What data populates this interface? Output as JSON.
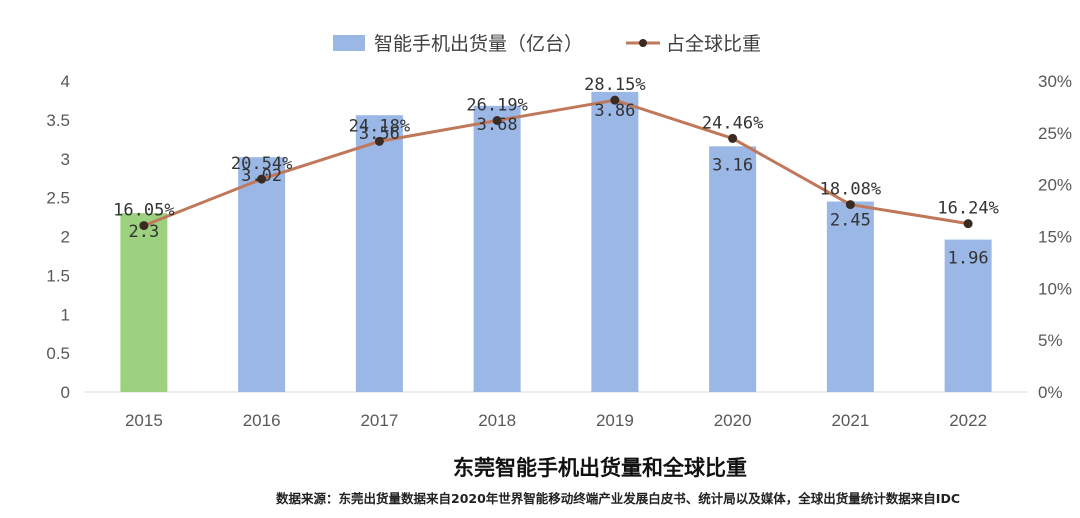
{
  "chart_data": {
    "type": "bar",
    "title": "东莞智能手机出货量和全球比重",
    "source": "数据来源：东莞出货量数据来自2020年世界智能移动终端产业发展白皮书、统计局以及媒体，全球出货量统计数据来自IDC",
    "categories": [
      "2015",
      "2016",
      "2017",
      "2018",
      "2019",
      "2020",
      "2021",
      "2022"
    ],
    "bar_series": {
      "name": "智能手机出货量（亿台）",
      "values": [
        2.3,
        3.02,
        3.56,
        3.68,
        3.86,
        3.16,
        2.45,
        1.96
      ],
      "labels": [
        "2.3",
        "3.02",
        "3.56",
        "3.68",
        "3.86",
        "3.16",
        "2.45",
        "1.96"
      ],
      "color": "#9ab7e6",
      "highlight_color": "#9dd17f",
      "highlight_index": 0
    },
    "line_series": {
      "name": "占全球比重",
      "values": [
        16.05,
        20.54,
        24.18,
        26.19,
        28.15,
        24.46,
        18.08,
        16.24
      ],
      "labels": [
        "16.05%",
        "20.54%",
        "24.18%",
        "26.19%",
        "28.15%",
        "24.46%",
        "18.08%",
        "16.24%"
      ],
      "color": "#c0785a",
      "marker_color": "#3a2a22"
    },
    "y_left": {
      "min": 0,
      "max": 4,
      "ticks": [
        "0",
        "0.5",
        "1",
        "1.5",
        "2",
        "2.5",
        "3",
        "3.5",
        "4"
      ],
      "tick_values": [
        0,
        0.5,
        1,
        1.5,
        2,
        2.5,
        3,
        3.5,
        4
      ]
    },
    "y_right": {
      "min": 0,
      "max": 30,
      "ticks": [
        "0%",
        "5%",
        "10%",
        "15%",
        "20%",
        "25%",
        "30%"
      ],
      "tick_values": [
        0,
        5,
        10,
        15,
        20,
        25,
        30
      ]
    },
    "legend_position": "top-center",
    "grid": false
  }
}
